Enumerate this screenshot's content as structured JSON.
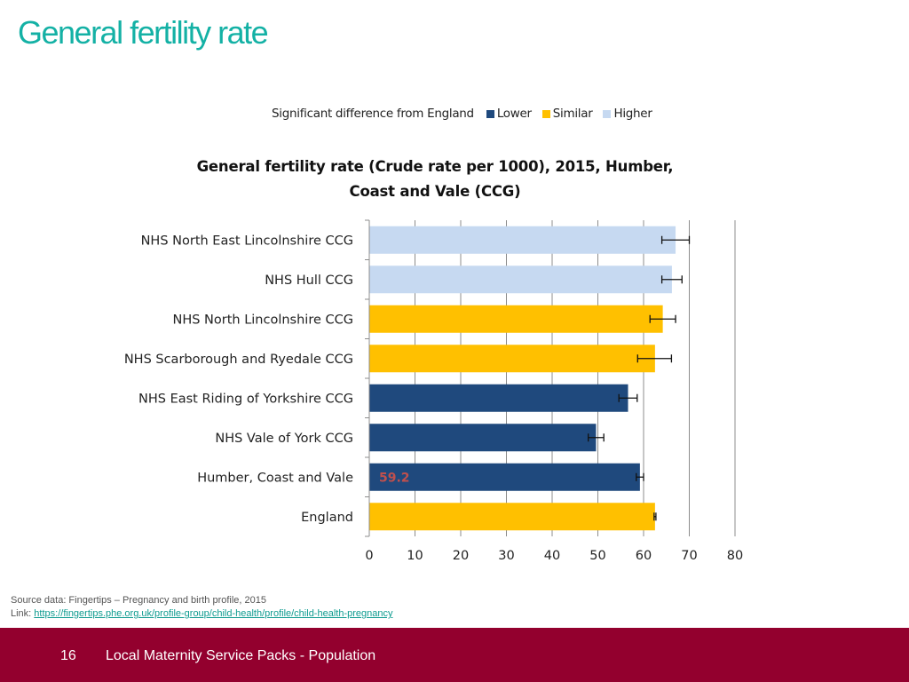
{
  "slide": {
    "title": "General fertility rate",
    "title_color": "#14b1a5"
  },
  "legend": {
    "label": "Significant difference from England",
    "items": [
      {
        "name": "Lower",
        "color": "#1f497d"
      },
      {
        "name": "Similar",
        "color": "#ffc000"
      },
      {
        "name": "Higher",
        "color": "#c6d9f1"
      }
    ]
  },
  "chart_data": {
    "type": "bar",
    "orientation": "horizontal",
    "title": "General fertility rate  (Crude rate per 1000), 2015, Humber, Coast and Vale (CCG)",
    "title_lines": [
      "General fertility rate  (Crude rate per 1000), 2015, Humber,",
      "Coast and Vale (CCG)"
    ],
    "categories": [
      "NHS North East Lincolnshire CCG",
      "NHS Hull CCG",
      "NHS North Lincolnshire CCG",
      "NHS Scarborough and Ryedale CCG",
      "NHS East Riding of Yorkshire CCG",
      "NHS Vale of York CCG",
      "Humber, Coast and Vale",
      "England"
    ],
    "values": [
      67.0,
      66.2,
      64.2,
      62.5,
      56.6,
      49.6,
      59.2,
      62.5
    ],
    "ci_lower": [
      64.0,
      64.0,
      61.4,
      58.7,
      54.6,
      47.9,
      58.4,
      62.3
    ],
    "ci_upper": [
      70.0,
      68.4,
      67.0,
      66.1,
      58.6,
      51.3,
      60.0,
      62.7
    ],
    "significance": [
      "Higher",
      "Higher",
      "Similar",
      "Similar",
      "Lower",
      "Lower",
      "Lower",
      "Similar"
    ],
    "data_labels": {
      "6": "59.2"
    },
    "data_label_color": "#c0504d",
    "xlim": [
      0,
      80
    ],
    "xticks": [
      0,
      10,
      20,
      30,
      40,
      50,
      60,
      70,
      80
    ],
    "grid": true,
    "xlabel": "",
    "ylabel": ""
  },
  "source": {
    "line1": "Source data: Fingertips – Pregnancy and birth profile, 2015",
    "link_prefix": "Link: ",
    "link_text": "https://fingertips.phe.org.uk/profile-group/child-health/profile/child-health-pregnancy"
  },
  "footer": {
    "page_number": "16",
    "text": "Local Maternity Service Packs - Population",
    "background": "#93002e"
  }
}
